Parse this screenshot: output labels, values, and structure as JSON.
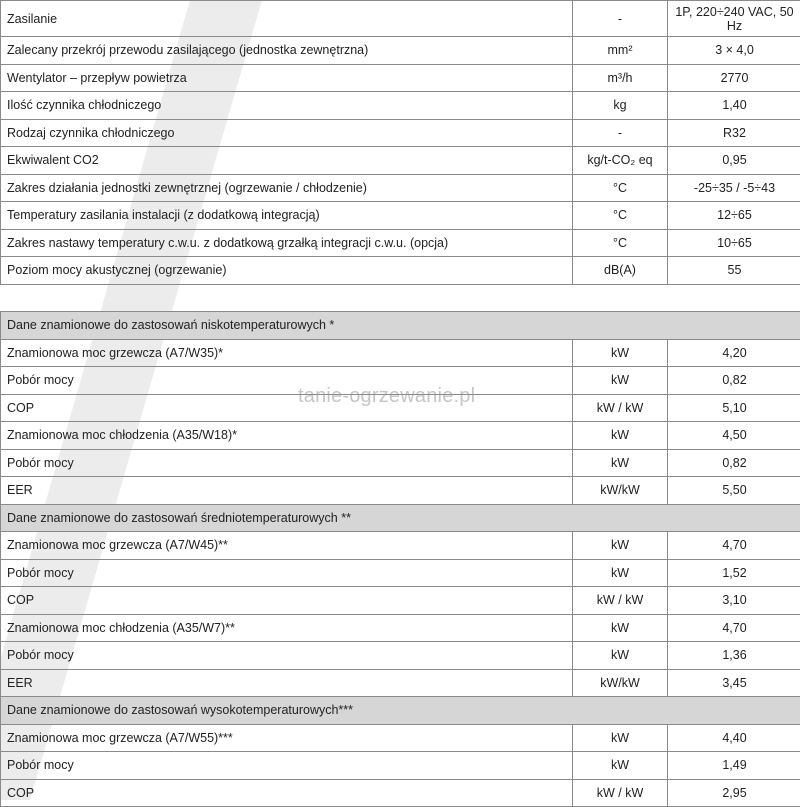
{
  "watermark": "tanie-ogrzewanie.pl",
  "general": [
    {
      "label": "Zasilanie",
      "unit": "-",
      "value": "1P, 220÷240 VAC, 50 Hz"
    },
    {
      "label": "Zalecany przekrój przewodu zasilającego (jednostka zewnętrzna)",
      "unit": "mm²",
      "value": "3 × 4,0"
    },
    {
      "label": "Wentylator – przepływ powietrza",
      "unit": "m³/h",
      "value": "2770"
    },
    {
      "label": "Ilość czynnika chłodniczego",
      "unit": "kg",
      "value": "1,40"
    },
    {
      "label": "Rodzaj czynnika chłodniczego",
      "unit": "-",
      "value": "R32"
    },
    {
      "label": "Ekwiwalent CO2",
      "unit": "kg/t-CO₂ eq",
      "value": "0,95"
    },
    {
      "label": "Zakres działania jednostki zewnętrznej (ogrzewanie / chłodzenie)",
      "unit": "°C",
      "value": "-25÷35 / -5÷43"
    },
    {
      "label": "Temperatury zasilania instalacji (z dodatkową integracją)",
      "unit": "°C",
      "value": "12÷65"
    },
    {
      "label": "Zakres nastawy temperatury c.w.u. z dodatkową grzałką integracji c.w.u. (opcja)",
      "unit": "°C",
      "value": "10÷65"
    },
    {
      "label": "Poziom mocy akustycznej (ogrzewanie)",
      "unit": "dB(A)",
      "value": "55"
    }
  ],
  "sections": [
    {
      "title": "Dane znamionowe do zastosowań niskotemperaturowych *",
      "rows": [
        {
          "label": "Znamionowa moc grzewcza (A7/W35)*",
          "unit": "kW",
          "value": "4,20"
        },
        {
          "label": "Pobór mocy",
          "unit": "kW",
          "value": "0,82"
        },
        {
          "label": "COP",
          "unit": "kW / kW",
          "value": "5,10"
        },
        {
          "label": "Znamionowa moc chłodzenia (A35/W18)*",
          "unit": "kW",
          "value": "4,50"
        },
        {
          "label": "Pobór mocy",
          "unit": "kW",
          "value": "0,82"
        },
        {
          "label": "EER",
          "unit": "kW/kW",
          "value": "5,50"
        }
      ]
    },
    {
      "title": "Dane znamionowe do zastosowań średniotemperaturowych **",
      "rows": [
        {
          "label": "Znamionowa moc grzewcza (A7/W45)**",
          "unit": "kW",
          "value": "4,70"
        },
        {
          "label": "Pobór mocy",
          "unit": "kW",
          "value": "1,52"
        },
        {
          "label": "COP",
          "unit": "kW / kW",
          "value": "3,10"
        },
        {
          "label": "Znamionowa moc chłodzenia (A35/W7)**",
          "unit": "kW",
          "value": "4,70"
        },
        {
          "label": "Pobór mocy",
          "unit": "kW",
          "value": "1,36"
        },
        {
          "label": "EER",
          "unit": "kW/kW",
          "value": "3,45"
        }
      ]
    },
    {
      "title": "Dane znamionowe do zastosowań wysokotemperaturowych***",
      "rows": [
        {
          "label": "Znamionowa moc grzewcza (A7/W55)***",
          "unit": "kW",
          "value": "4,40"
        },
        {
          "label": "Pobór mocy",
          "unit": "kW",
          "value": "1,49"
        },
        {
          "label": "COP",
          "unit": "kW / kW",
          "value": "2,95"
        }
      ]
    }
  ]
}
